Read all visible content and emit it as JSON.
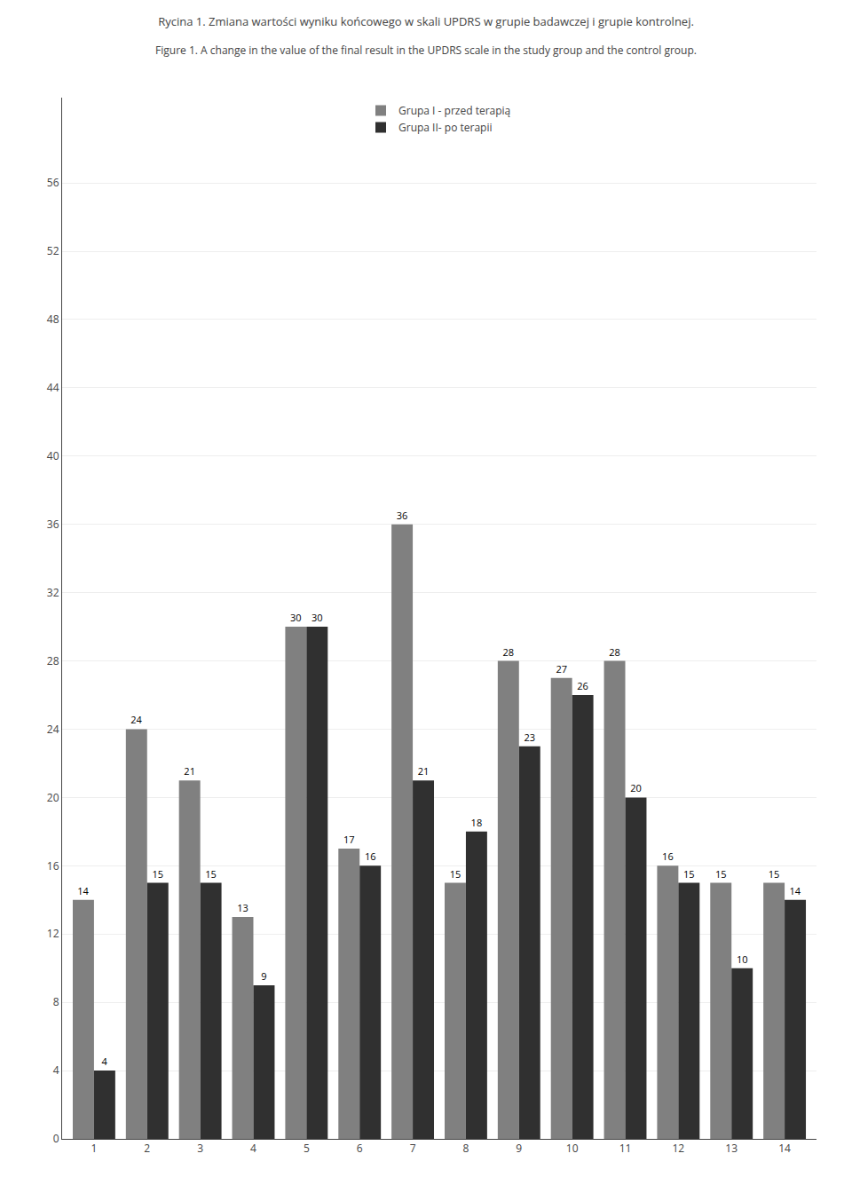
{
  "chart_data": {
    "type": "bar",
    "title": "Rycina 1. Zmiana wartości wyniku końcowego w skali UPDRS w grupie badawczej i grupie kontrolnej.",
    "subtitle": "Figure 1. A change in the value of the final result in the UPDRS scale in the study group and the control group.",
    "categories": [
      1,
      2,
      3,
      4,
      5,
      6,
      7,
      8,
      9,
      10,
      11,
      12,
      13,
      14
    ],
    "series": [
      {
        "name": "Grupa I - przed terapią",
        "color": "#808080",
        "values": [
          14,
          24,
          21,
          13,
          30,
          17,
          36,
          15,
          28,
          27,
          28,
          16,
          15,
          15
        ]
      },
      {
        "name": "Grupa II- po terapii",
        "color": "#303030",
        "values": [
          4,
          15,
          15,
          9,
          30,
          16,
          21,
          18,
          23,
          26,
          20,
          15,
          10,
          14
        ]
      }
    ],
    "ylim": [
      0,
      61
    ],
    "yticks": [
      0,
      4,
      8,
      12,
      16,
      20,
      24,
      28,
      32,
      36,
      40,
      44,
      48,
      52,
      56
    ],
    "grid": true,
    "legend": "upper center",
    "data_labels": true
  }
}
